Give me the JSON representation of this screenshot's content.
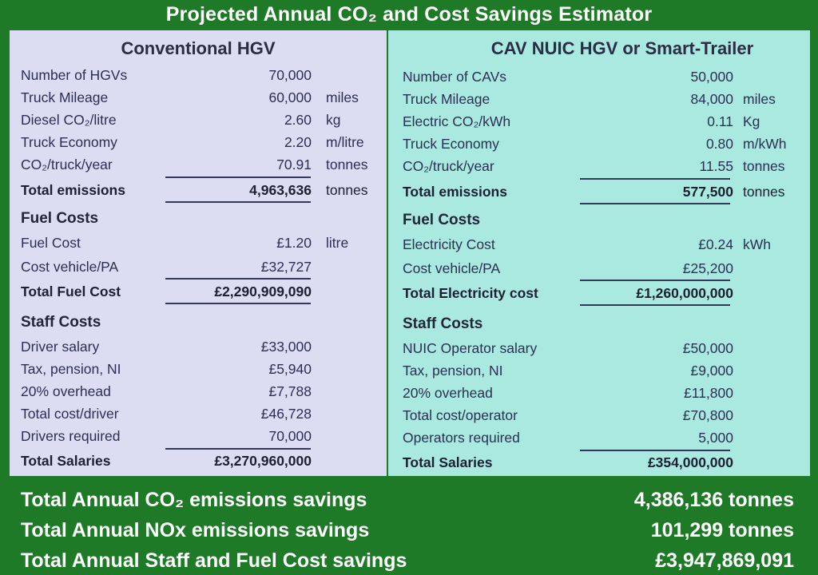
{
  "title": "Projected Annual CO₂ and Cost Savings Estimator",
  "conventional": {
    "heading": "Conventional HGV",
    "rows": [
      {
        "label": "Number of HGVs",
        "value": "70,000",
        "unit": ""
      },
      {
        "label": "Truck Mileage",
        "value": "60,000",
        "unit": "miles"
      },
      {
        "label": "Diesel CO₂/litre",
        "value": "2.60",
        "unit": "kg"
      },
      {
        "label": "Truck Economy",
        "value": "2.20",
        "unit": "m/litre"
      },
      {
        "label": "CO₂/truck/year",
        "value": "70.91",
        "unit": "tonnes"
      },
      {
        "label": "Total emissions",
        "value": "4,963,636",
        "unit": "tonnes"
      }
    ],
    "fuel_heading": "Fuel Costs",
    "fuel_rows": [
      {
        "label": "Fuel Cost",
        "value": "£1.20",
        "unit": "litre"
      },
      {
        "label": "Cost vehicle/PA",
        "value": "£32,727",
        "unit": ""
      },
      {
        "label": "Total Fuel Cost",
        "value": "£2,290,909,090",
        "unit": ""
      }
    ],
    "staff_heading": "Staff Costs",
    "staff_rows": [
      {
        "label": "Driver salary",
        "value": "£33,000"
      },
      {
        "label": "Tax, pension, NI",
        "value": "£5,940"
      },
      {
        "label": "20% overhead",
        "value": "£7,788"
      },
      {
        "label": "Total cost/driver",
        "value": "£46,728"
      },
      {
        "label": "Drivers required",
        "value": "70,000"
      },
      {
        "label": "Total Salaries",
        "value": "£3,270,960,000"
      }
    ]
  },
  "cav": {
    "heading": "CAV NUIC HGV or Smart-Trailer",
    "rows": [
      {
        "label": "Number of CAVs",
        "value": "50,000",
        "unit": ""
      },
      {
        "label": "Truck Mileage",
        "value": "84,000",
        "unit": "miles"
      },
      {
        "label": "Electric CO₂/kWh",
        "value": "0.11",
        "unit": "Kg"
      },
      {
        "label": "Truck Economy",
        "value": "0.80",
        "unit": "m/kWh"
      },
      {
        "label": "CO₂/truck/year",
        "value": "11.55",
        "unit": "tonnes"
      },
      {
        "label": "Total emissions",
        "value": "577,500",
        "unit": "tonnes"
      }
    ],
    "fuel_heading": "Fuel Costs",
    "fuel_rows": [
      {
        "label": "Electricity Cost",
        "value": "£0.24",
        "unit": "kWh"
      },
      {
        "label": "Cost vehicle/PA",
        "value": "£25,200",
        "unit": ""
      },
      {
        "label": "Total Electricity cost",
        "value": "£1,260,000,000",
        "unit": ""
      }
    ],
    "staff_heading": "Staff Costs",
    "staff_rows": [
      {
        "label": "NUIC Operator salary",
        "value": "£50,000"
      },
      {
        "label": "Tax, pension, NI",
        "value": "£9,000"
      },
      {
        "label": "20% overhead",
        "value": "£11,800"
      },
      {
        "label": "Total cost/operator",
        "value": "£70,800"
      },
      {
        "label": "Operators required",
        "value": "5,000"
      },
      {
        "label": "Total Salaries",
        "value": "£354,000,000"
      }
    ]
  },
  "summary": [
    {
      "label": "Total Annual CO₂ emissions savings",
      "value": "4,386,136 tonnes"
    },
    {
      "label": "Total Annual NOx emissions savings",
      "value": "101,299 tonnes"
    },
    {
      "label": "Total Annual Staff and Fuel Cost savings",
      "value": "£3,947,869,091"
    }
  ]
}
